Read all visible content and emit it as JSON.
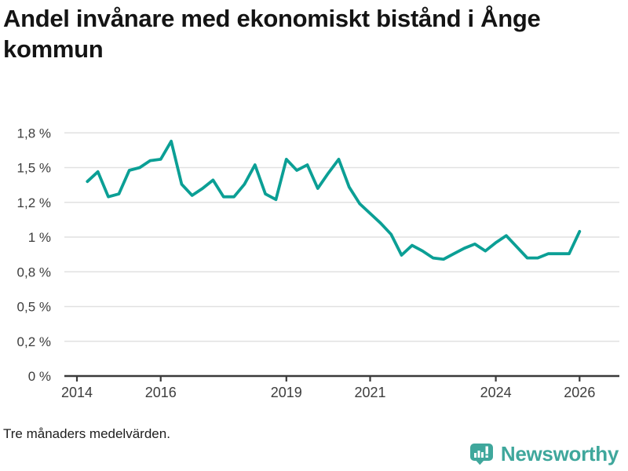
{
  "title": {
    "full": "Andel invånare med ekonomiskt bistånd i Ånge kommun",
    "lines": [
      "Andel invånare med ekonomiskt bistånd i Ånge",
      "kommun"
    ]
  },
  "footnote": "Tre månaders medelvärden.",
  "branding": {
    "name": "Newsworthy",
    "logo_icon": "bar-chart-speech-bubble-icon",
    "color": "#3fa79c"
  },
  "colors": {
    "line": "#0b9f95",
    "grid": "#e1e1e1",
    "axis": "#3a3a3a",
    "tick_text": "#3d3d3d",
    "title_text": "#141414"
  },
  "chart_data": {
    "type": "line",
    "title": "Andel invånare med ekonomiskt bistånd i Ånge kommun",
    "note": "Tre månaders medelvärden.",
    "series_name": "Andel invånare med ekonomiskt bistånd",
    "y_unit": "%",
    "xlabel": "",
    "ylabel": "",
    "grid": "horizontal",
    "legend": "none",
    "xlim": [
      2013.7,
      2026.95
    ],
    "ylim": [
      0,
      1.9
    ],
    "x": [
      2014.25,
      2014.5,
      2014.75,
      2015.0,
      2015.25,
      2015.5,
      2015.75,
      2016.0,
      2016.25,
      2016.5,
      2016.75,
      2017.0,
      2017.25,
      2017.5,
      2017.75,
      2018.0,
      2018.25,
      2018.5,
      2018.75,
      2019.0,
      2019.25,
      2019.5,
      2019.75,
      2020.0,
      2020.25,
      2020.5,
      2020.75,
      2021.0,
      2021.25,
      2021.5,
      2021.75,
      2022.0,
      2022.25,
      2022.5,
      2022.75,
      2023.0,
      2023.25,
      2023.5,
      2023.75,
      2024.0,
      2024.25,
      2024.5,
      2024.75,
      2025.0,
      2025.25,
      2025.5,
      2025.75,
      2026.0
    ],
    "y": [
      1.4,
      1.47,
      1.29,
      1.31,
      1.48,
      1.5,
      1.55,
      1.56,
      1.69,
      1.38,
      1.3,
      1.35,
      1.41,
      1.29,
      1.29,
      1.38,
      1.52,
      1.31,
      1.27,
      1.56,
      1.48,
      1.52,
      1.35,
      1.46,
      1.56,
      1.36,
      1.24,
      1.17,
      1.1,
      1.02,
      0.87,
      0.94,
      0.9,
      0.85,
      0.84,
      0.88,
      0.92,
      0.95,
      0.9,
      0.96,
      1.01,
      0.93,
      0.85,
      0.85,
      0.88,
      0.88,
      0.88,
      1.04
    ],
    "x_ticks": [
      {
        "v": 2014,
        "label": "2014"
      },
      {
        "v": 2016,
        "label": "2016"
      },
      {
        "v": 2019,
        "label": "2019"
      },
      {
        "v": 2021,
        "label": "2021"
      },
      {
        "v": 2024,
        "label": "2024"
      },
      {
        "v": 2026,
        "label": "2026"
      }
    ],
    "y_ticks": [
      {
        "v": 0,
        "label": "0 %"
      },
      {
        "v": 0.25,
        "label": "0,2 %"
      },
      {
        "v": 0.5,
        "label": "0,5 %"
      },
      {
        "v": 0.75,
        "label": "0,8 %"
      },
      {
        "v": 1.0,
        "label": "1 %"
      },
      {
        "v": 1.25,
        "label": "1,2 %"
      },
      {
        "v": 1.5,
        "label": "1,5 %"
      },
      {
        "v": 1.75,
        "label": "1,8 %"
      }
    ]
  }
}
